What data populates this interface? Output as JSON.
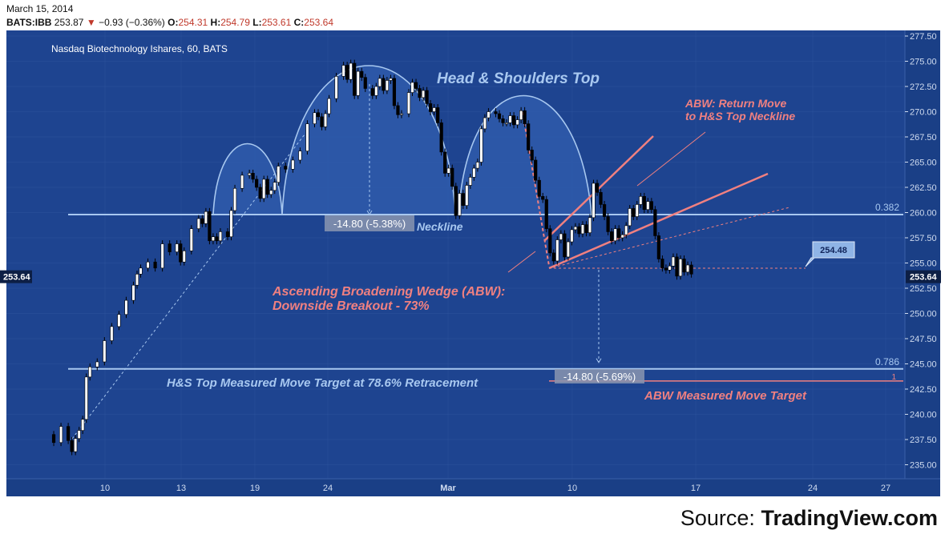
{
  "header": {
    "date": "March 15, 2014",
    "symbol": "BATS:IBB",
    "last": "253.87",
    "change": "−0.93 (−0.36%)",
    "open_label": "O:",
    "open": "254.31",
    "high_label": "H:",
    "high": "254.79",
    "low_label": "L:",
    "low": "253.61",
    "close_label": "C:",
    "close": "253.64"
  },
  "source": {
    "prefix": "Source:",
    "name": "TradingView.com"
  },
  "colors": {
    "background": "#1e4490",
    "grid": "#3a5fa8",
    "light_blue": "#a8c8f0",
    "pink": "#f08080",
    "up_candle": "#ffffff",
    "down_candle": "#000000",
    "axis_text": "#d0dcf0",
    "label_box": "#8a95b0",
    "callout": "#8fb4e6"
  },
  "chart_data": {
    "type": "candlestick",
    "title": "Nasdaq Biotechnology Ishares, 60, BATS",
    "ylim": [
      234,
      277.8
    ],
    "yticks": [
      "235.00",
      "237.50",
      "240.00",
      "242.50",
      "245.00",
      "247.50",
      "250.00",
      "252.50",
      "255.00",
      "257.50",
      "260.00",
      "262.50",
      "265.00",
      "267.50",
      "270.00",
      "272.50",
      "275.00",
      "277.50"
    ],
    "xticks": [
      "10",
      "13",
      "19",
      "24",
      "Mar",
      "10",
      "17",
      "24",
      "27"
    ],
    "last_price_label": "253.64",
    "series_points": [
      {
        "i": 0,
        "v": 238
      },
      {
        "i": 2,
        "v": 237.2
      },
      {
        "i": 4,
        "v": 238.8
      },
      {
        "i": 6,
        "v": 237.4
      },
      {
        "i": 7,
        "v": 236.3
      },
      {
        "i": 8,
        "v": 237.6
      },
      {
        "i": 9,
        "v": 238.4
      },
      {
        "i": 10,
        "v": 239.5
      },
      {
        "i": 11,
        "v": 243.7
      },
      {
        "i": 12,
        "v": 244.7
      },
      {
        "i": 14,
        "v": 245.2
      },
      {
        "i": 16,
        "v": 247.3
      },
      {
        "i": 18,
        "v": 248.7
      },
      {
        "i": 20,
        "v": 249.9
      },
      {
        "i": 22,
        "v": 251.3
      },
      {
        "i": 24,
        "v": 252.8
      },
      {
        "i": 25,
        "v": 253.9
      },
      {
        "i": 26,
        "v": 254.5
      },
      {
        "i": 28,
        "v": 255.1
      },
      {
        "i": 30,
        "v": 254.5
      },
      {
        "i": 32,
        "v": 256.9
      },
      {
        "i": 34,
        "v": 256.1
      },
      {
        "i": 36,
        "v": 256.9
      },
      {
        "i": 37,
        "v": 255.1
      },
      {
        "i": 38,
        "v": 256.2
      },
      {
        "i": 40,
        "v": 258.4
      },
      {
        "i": 42,
        "v": 259.4
      },
      {
        "i": 43,
        "v": 258.9
      },
      {
        "i": 44,
        "v": 260.1
      },
      {
        "i": 45,
        "v": 257.2
      },
      {
        "i": 46,
        "v": 257.6
      },
      {
        "i": 47,
        "v": 257.2
      },
      {
        "i": 48,
        "v": 258.1
      },
      {
        "i": 50,
        "v": 257.6
      },
      {
        "i": 51,
        "v": 260.2
      },
      {
        "i": 52,
        "v": 262.4
      },
      {
        "i": 54,
        "v": 263.7
      },
      {
        "i": 56,
        "v": 263.9
      },
      {
        "i": 57,
        "v": 263.3
      },
      {
        "i": 58,
        "v": 262.5
      },
      {
        "i": 59,
        "v": 261.4
      },
      {
        "i": 60,
        "v": 263.3
      },
      {
        "i": 61,
        "v": 261.8
      },
      {
        "i": 62,
        "v": 262.2
      },
      {
        "i": 63,
        "v": 263.0
      },
      {
        "i": 64,
        "v": 264.6
      },
      {
        "i": 66,
        "v": 264.3
      },
      {
        "i": 68,
        "v": 265.2
      },
      {
        "i": 70,
        "v": 266.1
      },
      {
        "i": 72,
        "v": 268.8
      },
      {
        "i": 74,
        "v": 269.9
      },
      {
        "i": 75,
        "v": 269.5
      },
      {
        "i": 76,
        "v": 268.5
      },
      {
        "i": 77,
        "v": 269.8
      },
      {
        "i": 78,
        "v": 271.3
      },
      {
        "i": 80,
        "v": 273.5
      },
      {
        "i": 82,
        "v": 274.6
      },
      {
        "i": 83,
        "v": 273.2
      },
      {
        "i": 84,
        "v": 274.8
      },
      {
        "i": 85,
        "v": 271.6
      },
      {
        "i": 86,
        "v": 274.0
      },
      {
        "i": 87,
        "v": 273.4
      },
      {
        "i": 88,
        "v": 272.3
      },
      {
        "i": 90,
        "v": 271.6
      },
      {
        "i": 91,
        "v": 272.5
      },
      {
        "i": 92,
        "v": 273.3
      },
      {
        "i": 93,
        "v": 272.1
      },
      {
        "i": 94,
        "v": 273.1
      },
      {
        "i": 95,
        "v": 273.3
      },
      {
        "i": 96,
        "v": 270.6
      },
      {
        "i": 97,
        "v": 269.7
      },
      {
        "i": 98,
        "v": 269.8
      },
      {
        "i": 100,
        "v": 271.9
      },
      {
        "i": 101,
        "v": 272.9
      },
      {
        "i": 102,
        "v": 272.3
      },
      {
        "i": 103,
        "v": 271.4
      },
      {
        "i": 104,
        "v": 272.1
      },
      {
        "i": 105,
        "v": 270.8
      },
      {
        "i": 106,
        "v": 270.0
      },
      {
        "i": 107,
        "v": 270.4
      },
      {
        "i": 108,
        "v": 268.9
      },
      {
        "i": 109,
        "v": 266.0
      },
      {
        "i": 110,
        "v": 263.9
      },
      {
        "i": 111,
        "v": 264.4
      },
      {
        "i": 112,
        "v": 262.6
      },
      {
        "i": 113,
        "v": 259.7
      },
      {
        "i": 114,
        "v": 261.9
      },
      {
        "i": 115,
        "v": 260.7
      },
      {
        "i": 116,
        "v": 262.7
      },
      {
        "i": 117,
        "v": 263.5
      },
      {
        "i": 118,
        "v": 264.4
      },
      {
        "i": 119,
        "v": 265.0
      },
      {
        "i": 120,
        "v": 268.3
      },
      {
        "i": 121,
        "v": 269.4
      },
      {
        "i": 122,
        "v": 270.0
      },
      {
        "i": 124,
        "v": 269.8
      },
      {
        "i": 125,
        "v": 269.3
      },
      {
        "i": 126,
        "v": 268.9
      },
      {
        "i": 127,
        "v": 268.9
      },
      {
        "i": 128,
        "v": 269.6
      },
      {
        "i": 129,
        "v": 268.7
      },
      {
        "i": 130,
        "v": 269.2
      },
      {
        "i": 131,
        "v": 270.1
      },
      {
        "i": 132,
        "v": 268.8
      },
      {
        "i": 133,
        "v": 266.2
      },
      {
        "i": 134,
        "v": 265.2
      },
      {
        "i": 135,
        "v": 263.2
      },
      {
        "i": 136,
        "v": 261.6
      },
      {
        "i": 137,
        "v": 261.3
      },
      {
        "i": 138,
        "v": 258.4
      },
      {
        "i": 139,
        "v": 256.0
      },
      {
        "i": 140,
        "v": 255.2
      },
      {
        "i": 141,
        "v": 257.3
      },
      {
        "i": 142,
        "v": 257.9
      },
      {
        "i": 143,
        "v": 255.6
      },
      {
        "i": 144,
        "v": 257.1
      },
      {
        "i": 145,
        "v": 258.3
      },
      {
        "i": 146,
        "v": 258.6
      },
      {
        "i": 147,
        "v": 257.9
      },
      {
        "i": 148,
        "v": 258.8
      },
      {
        "i": 149,
        "v": 258.0
      },
      {
        "i": 150,
        "v": 259.5
      },
      {
        "i": 151,
        "v": 262.9
      },
      {
        "i": 152,
        "v": 262.0
      },
      {
        "i": 153,
        "v": 260.8
      },
      {
        "i": 154,
        "v": 259.6
      },
      {
        "i": 155,
        "v": 258.1
      },
      {
        "i": 156,
        "v": 257.2
      },
      {
        "i": 157,
        "v": 258.4
      },
      {
        "i": 158,
        "v": 257.5
      },
      {
        "i": 159,
        "v": 257.8
      },
      {
        "i": 160,
        "v": 258.7
      },
      {
        "i": 161,
        "v": 260.4
      },
      {
        "i": 162,
        "v": 259.6
      },
      {
        "i": 163,
        "v": 260.8
      },
      {
        "i": 164,
        "v": 261.6
      },
      {
        "i": 165,
        "v": 260.3
      },
      {
        "i": 166,
        "v": 261.1
      },
      {
        "i": 167,
        "v": 260.3
      },
      {
        "i": 168,
        "v": 257.7
      },
      {
        "i": 169,
        "v": 255.4
      },
      {
        "i": 170,
        "v": 254.5
      },
      {
        "i": 171,
        "v": 254.3
      },
      {
        "i": 172,
        "v": 254.7
      },
      {
        "i": 173,
        "v": 255.6
      },
      {
        "i": 174,
        "v": 253.7
      },
      {
        "i": 175,
        "v": 255.4
      },
      {
        "i": 176,
        "v": 254.1
      },
      {
        "i": 177,
        "v": 254.8
      },
      {
        "i": 178,
        "v": 253.9
      }
    ],
    "levels": [
      {
        "name": "neckline",
        "value": 259.8,
        "label": "0.382"
      },
      {
        "name": "target",
        "value": 244.5,
        "label": "0.786"
      },
      {
        "name": "abw_target",
        "value": 243.3,
        "label": "1"
      }
    ],
    "annotations": {
      "hs_title": "Head & Shoulders Top",
      "neckline": "Neckline",
      "measure_top": "-14.80 (-5.38%)",
      "measure_bottom": "-14.80 (-5.69%)",
      "abw_return": [
        "ABW: Return Move",
        "to H&S Top Neckline"
      ],
      "abw_wedge": [
        "Ascending Broadening Wedge (ABW):",
        "Downside Breakout - 73%"
      ],
      "hs_target": "H&S Top Measured Move Target at 78.6% Retracement",
      "abw_target": "ABW Measured Move Target",
      "callout": "254.48"
    }
  }
}
